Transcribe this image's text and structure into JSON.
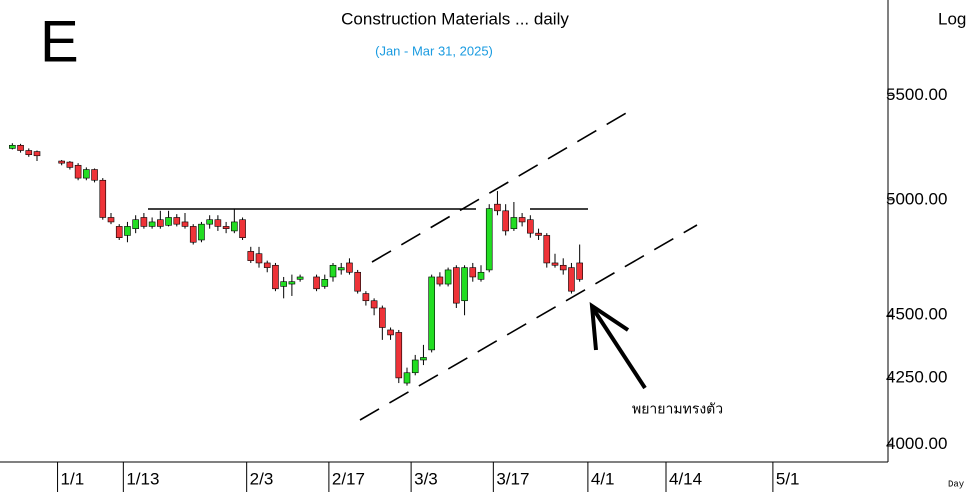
{
  "chart_data": {
    "type": "candlestick",
    "title": "Construction Materials ... daily",
    "subtitle": "(Jan - Mar 31, 2025)",
    "panel_letter": "E",
    "scale_label": "Log",
    "period_label": "Day",
    "annotation": "พยายามทรงตัว",
    "log": true,
    "up_color": "#22dd22",
    "down_color": "#ee3338",
    "xlim": [
      -0.5,
      107.5
    ],
    "xticks": [
      {
        "value": 6.5,
        "label": "1/1"
      },
      {
        "value": 14.5,
        "label": "1/13"
      },
      {
        "value": 29.5,
        "label": "2/3"
      },
      {
        "value": 39.5,
        "label": "2/17"
      },
      {
        "value": 49.5,
        "label": "3/3"
      },
      {
        "value": 59.5,
        "label": "3/17"
      },
      {
        "value": 71,
        "label": "4/1"
      },
      {
        "value": 80.5,
        "label": "4/14"
      },
      {
        "value": 93.5,
        "label": "5/1"
      }
    ],
    "ylim": [
      3936,
      6000
    ],
    "yticks": [
      {
        "value": 4000,
        "label": "4000.00"
      },
      {
        "value": 4250,
        "label": "4250.00"
      },
      {
        "value": 4500,
        "label": "4500.00"
      },
      {
        "value": 5000,
        "label": "5000.00"
      },
      {
        "value": 5500,
        "label": "5500.00"
      }
    ],
    "x": [
      1,
      2,
      3,
      4,
      7,
      8,
      9,
      10,
      11,
      12,
      13,
      14,
      15,
      16,
      17,
      18,
      19,
      20,
      21,
      22,
      23,
      24,
      25,
      26,
      27,
      28,
      29,
      30,
      31,
      32,
      33,
      34,
      35,
      36,
      38,
      39,
      40,
      41,
      42,
      43,
      44,
      45,
      46,
      47,
      48,
      49,
      50,
      51,
      52,
      53,
      54,
      55,
      56,
      57,
      58,
      59,
      60,
      61,
      62,
      63,
      64,
      65,
      66,
      67,
      68,
      69,
      70
    ],
    "open": [
      5240,
      5255,
      5230,
      5225,
      5180,
      5175,
      5160,
      5100,
      5140,
      5090,
      4920,
      4880,
      4840,
      4870,
      4920,
      4880,
      4910,
      4885,
      4920,
      4900,
      4880,
      4820,
      4890,
      4910,
      4880,
      4860,
      4910,
      4770,
      4760,
      4720,
      4710,
      4620,
      4630,
      4650,
      4660,
      4620,
      4660,
      4690,
      4720,
      4680,
      4590,
      4560,
      4530,
      4440,
      4430,
      4230,
      4270,
      4320,
      4360,
      4660,
      4630,
      4700,
      4560,
      4700,
      4650,
      4690,
      4980,
      4950,
      4870,
      4920,
      4910,
      4850,
      4840,
      4720,
      4710,
      4700,
      4720
    ],
    "high": [
      5265,
      5262,
      5240,
      5230,
      5185,
      5180,
      5170,
      5150,
      5145,
      5100,
      4940,
      4890,
      4900,
      4930,
      4940,
      4920,
      4950,
      4950,
      4935,
      4940,
      4890,
      4900,
      4930,
      4930,
      4900,
      4960,
      4920,
      4790,
      4790,
      4730,
      4720,
      4660,
      4670,
      4670,
      4670,
      4670,
      4720,
      4720,
      4740,
      4690,
      4600,
      4570,
      4540,
      4450,
      4440,
      4290,
      4340,
      4380,
      4670,
      4680,
      4700,
      4710,
      4710,
      4720,
      4710,
      4980,
      5040,
      4980,
      4990,
      4940,
      4930,
      4870,
      4850,
      4760,
      4740,
      4720,
      4800
    ],
    "low": [
      5235,
      5220,
      5200,
      5180,
      5160,
      5140,
      5090,
      5090,
      5080,
      4910,
      4890,
      4820,
      4810,
      4850,
      4870,
      4870,
      4870,
      4880,
      4880,
      4870,
      4800,
      4810,
      4870,
      4860,
      4850,
      4850,
      4820,
      4720,
      4700,
      4680,
      4600,
      4570,
      4580,
      4640,
      4600,
      4610,
      4640,
      4670,
      4670,
      4590,
      4540,
      4500,
      4400,
      4400,
      4230,
      4220,
      4260,
      4300,
      4350,
      4620,
      4620,
      4530,
      4500,
      4640,
      4640,
      4680,
      4930,
      4840,
      4860,
      4880,
      4830,
      4820,
      4700,
      4700,
      4670,
      4590,
      4640
    ],
    "close": [
      5255,
      5230,
      5210,
      5205,
      5170,
      5150,
      5100,
      5140,
      5090,
      4920,
      4900,
      4830,
      4880,
      4910,
      4880,
      4900,
      4880,
      4920,
      4890,
      4880,
      4810,
      4890,
      4910,
      4880,
      4870,
      4900,
      4830,
      4730,
      4720,
      4700,
      4610,
      4640,
      4640,
      4660,
      4610,
      4650,
      4710,
      4700,
      4680,
      4600,
      4560,
      4530,
      4450,
      4420,
      4250,
      4270,
      4320,
      4330,
      4660,
      4630,
      4690,
      4550,
      4700,
      4660,
      4680,
      4960,
      4950,
      4860,
      4920,
      4900,
      4850,
      4840,
      4720,
      4710,
      4690,
      4600,
      4650
    ]
  }
}
